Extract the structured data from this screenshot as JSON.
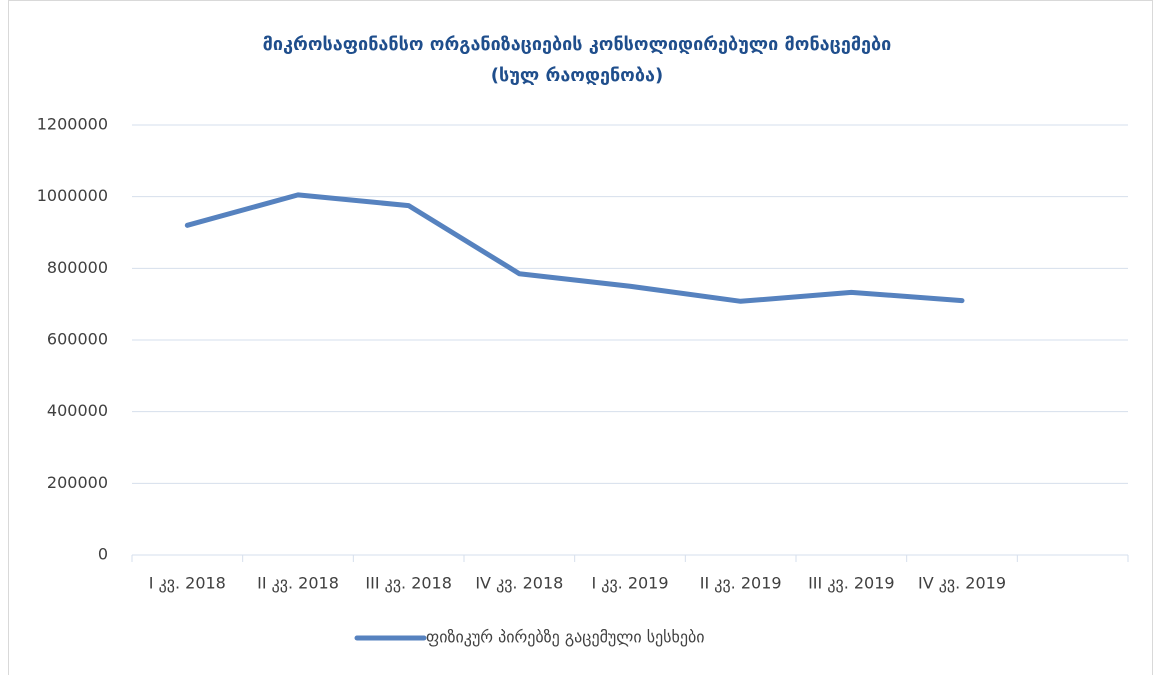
{
  "chart_data": {
    "type": "line",
    "title": "მიკროსაფინანსო ორგანიზაციების კონსოლიდირებული მონაცემები",
    "subtitle": "(სულ რაოდენობა)",
    "categories": [
      "I კვ. 2018",
      "II კვ. 2018",
      "III კვ. 2018",
      "IV კვ. 2018",
      "I კვ. 2019",
      "II კვ. 2019",
      "III კვ. 2019",
      "IV კვ. 2019",
      null
    ],
    "series": [
      {
        "name": "ფიზიკურ პირებზე გაცემული სესხები",
        "color": "#5682bf",
        "values": [
          920000,
          1005000,
          975000,
          785000,
          750000,
          708000,
          733000,
          710000,
          null
        ]
      }
    ],
    "ylim": [
      0,
      1200000
    ],
    "yticks": [
      0,
      200000,
      400000,
      600000,
      800000,
      1000000,
      1200000
    ],
    "grid": true,
    "legend": "bottom"
  }
}
